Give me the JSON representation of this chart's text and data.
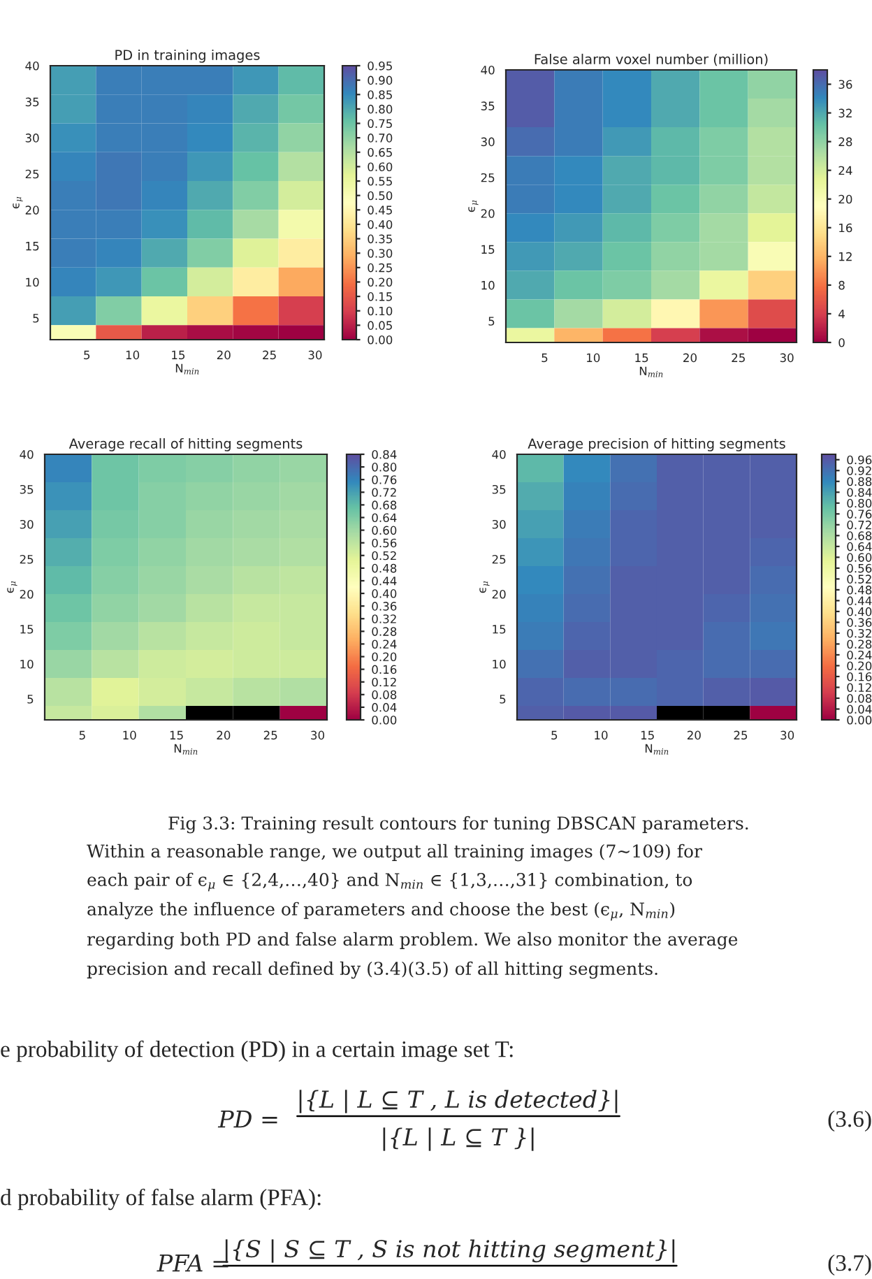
{
  "chart_data": [
    {
      "type": "heatmap",
      "title": "PD in training images",
      "xlabel": "N$_{min}$",
      "ylabel": "ϵ$_{μ}$",
      "x": [
        3.5,
        8.5,
        13.5,
        18.5,
        23.5,
        28.5
      ],
      "y": [
        38,
        34,
        30,
        26,
        22,
        18,
        14,
        10,
        6,
        2
      ],
      "xlim": [
        1,
        31
      ],
      "ylim": [
        2,
        40
      ],
      "xticks": [
        5,
        10,
        15,
        20,
        25,
        30
      ],
      "yticks": [
        5,
        10,
        15,
        20,
        25,
        30,
        35,
        40
      ],
      "cells": [
        [
          0.82,
          0.87,
          0.87,
          0.87,
          0.83,
          0.77
        ],
        [
          0.82,
          0.87,
          0.87,
          0.86,
          0.8,
          0.74
        ],
        [
          0.84,
          0.87,
          0.87,
          0.85,
          0.78,
          0.7
        ],
        [
          0.86,
          0.88,
          0.87,
          0.83,
          0.76,
          0.65
        ],
        [
          0.87,
          0.88,
          0.86,
          0.8,
          0.72,
          0.6
        ],
        [
          0.87,
          0.87,
          0.84,
          0.77,
          0.67,
          0.52
        ],
        [
          0.87,
          0.86,
          0.8,
          0.72,
          0.58,
          0.42
        ],
        [
          0.86,
          0.83,
          0.75,
          0.6,
          0.42,
          0.28
        ],
        [
          0.82,
          0.72,
          0.55,
          0.35,
          0.2,
          0.1
        ],
        [
          0.5,
          0.15,
          0.05,
          0.02,
          0.01,
          0.0
        ]
      ],
      "clim": [
        0,
        0.95
      ],
      "cticks": [
        {
          "value": 0,
          "label": "0.00"
        },
        {
          "value": 0.05,
          "label": "0.05"
        },
        {
          "value": 0.1,
          "label": "0.10"
        },
        {
          "value": 0.15,
          "label": "0.15"
        },
        {
          "value": 0.2,
          "label": "0.20"
        },
        {
          "value": 0.25,
          "label": "0.25"
        },
        {
          "value": 0.3,
          "label": "0.30"
        },
        {
          "value": 0.35,
          "label": "0.35"
        },
        {
          "value": 0.4,
          "label": "0.40"
        },
        {
          "value": 0.45,
          "label": "0.45"
        },
        {
          "value": 0.5,
          "label": "0.50"
        },
        {
          "value": 0.55,
          "label": "0.55"
        },
        {
          "value": 0.6,
          "label": "0.60"
        },
        {
          "value": 0.65,
          "label": "0.65"
        },
        {
          "value": 0.7,
          "label": "0.70"
        },
        {
          "value": 0.75,
          "label": "0.75"
        },
        {
          "value": 0.8,
          "label": "0.80"
        },
        {
          "value": 0.85,
          "label": "0.85"
        },
        {
          "value": 0.9,
          "label": "0.90"
        },
        {
          "value": 0.95,
          "label": "0.95"
        }
      ]
    },
    {
      "type": "heatmap",
      "title": "False alarm voxel number (million)",
      "xlabel": "N$_{min}$",
      "ylabel": "ϵ$_{μ}$",
      "x": [
        3.5,
        8.5,
        13.5,
        18.5,
        23.5,
        28.5
      ],
      "y": [
        38,
        34,
        30,
        26,
        22,
        18,
        14,
        10,
        6,
        2
      ],
      "xlim": [
        1,
        31
      ],
      "ylim": [
        2,
        40
      ],
      "xticks": [
        5,
        10,
        15,
        20,
        25,
        30
      ],
      "yticks": [
        5,
        10,
        15,
        20,
        25,
        30,
        35,
        40
      ],
      "cells": [
        [
          37,
          35,
          34,
          32,
          30,
          28
        ],
        [
          37,
          35,
          34,
          32,
          30,
          27
        ],
        [
          36,
          35,
          33,
          31,
          29,
          26
        ],
        [
          35,
          34,
          32,
          31,
          29,
          26
        ],
        [
          35,
          34,
          32,
          30,
          28,
          25
        ],
        [
          34,
          33,
          31,
          29,
          27,
          23
        ],
        [
          33,
          32,
          30,
          28,
          27,
          20
        ],
        [
          32,
          30,
          29,
          27,
          22,
          14
        ],
        [
          30,
          27,
          24,
          18,
          10,
          5
        ],
        [
          22,
          12,
          8,
          4,
          1,
          0
        ]
      ],
      "clim": [
        0,
        38
      ],
      "cticks": [
        0,
        4,
        8,
        12,
        16,
        20,
        24,
        28,
        32,
        36
      ]
    },
    {
      "type": "heatmap",
      "title": "Average recall of hitting segments",
      "xlabel": "N$_{min}$",
      "ylabel": "ϵ$_{μ}$",
      "x": [
        3.5,
        8.5,
        13.5,
        18.5,
        23.5,
        28.5
      ],
      "y": [
        38,
        34,
        30,
        26,
        22,
        18,
        14,
        10,
        6,
        2
      ],
      "xlim": [
        1,
        31
      ],
      "ylim": [
        2,
        40
      ],
      "xticks": [
        5,
        10,
        15,
        20,
        25,
        30
      ],
      "yticks": [
        5,
        10,
        15,
        20,
        25,
        30,
        35,
        40
      ],
      "cells": [
        [
          0.76,
          0.66,
          0.64,
          0.63,
          0.62,
          0.61
        ],
        [
          0.74,
          0.66,
          0.63,
          0.62,
          0.61,
          0.6
        ],
        [
          0.72,
          0.65,
          0.63,
          0.61,
          0.6,
          0.59
        ],
        [
          0.7,
          0.64,
          0.62,
          0.6,
          0.59,
          0.58
        ],
        [
          0.68,
          0.63,
          0.61,
          0.59,
          0.57,
          0.56
        ],
        [
          0.66,
          0.62,
          0.6,
          0.57,
          0.55,
          0.55
        ],
        [
          0.64,
          0.6,
          0.57,
          0.55,
          0.54,
          0.55
        ],
        [
          0.61,
          0.57,
          0.54,
          0.53,
          0.54,
          0.54
        ],
        [
          0.57,
          0.51,
          0.53,
          0.55,
          0.57,
          0.58
        ],
        [
          0.55,
          0.52,
          0.58,
          null,
          null,
          0.0
        ]
      ],
      "clim": [
        0,
        0.84
      ],
      "cticks": [
        {
          "value": 0,
          "label": "0.00"
        },
        {
          "value": 0.04,
          "label": "0.04"
        },
        {
          "value": 0.08,
          "label": "0.08"
        },
        {
          "value": 0.12,
          "label": "0.12"
        },
        {
          "value": 0.16,
          "label": "0.16"
        },
        {
          "value": 0.2,
          "label": "0.20"
        },
        {
          "value": 0.24,
          "label": "0.24"
        },
        {
          "value": 0.28,
          "label": "0.28"
        },
        {
          "value": 0.32,
          "label": "0.32"
        },
        {
          "value": 0.36,
          "label": "0.36"
        },
        {
          "value": 0.4,
          "label": "0.40"
        },
        {
          "value": 0.44,
          "label": "0.44"
        },
        {
          "value": 0.48,
          "label": "0.48"
        },
        {
          "value": 0.52,
          "label": "0.52"
        },
        {
          "value": 0.56,
          "label": "0.56"
        },
        {
          "value": 0.6,
          "label": "0.60"
        },
        {
          "value": 0.64,
          "label": "0.64"
        },
        {
          "value": 0.68,
          "label": "0.68"
        },
        {
          "value": 0.72,
          "label": "0.72"
        },
        {
          "value": 0.76,
          "label": "0.76"
        },
        {
          "value": 0.8,
          "label": "0.80"
        },
        {
          "value": 0.84,
          "label": "0.84"
        }
      ]
    },
    {
      "type": "heatmap",
      "title": "Average precision of hitting segments",
      "xlabel": "N$_{min}$",
      "ylabel": "ϵ$_{μ}$",
      "x": [
        3.5,
        8.5,
        13.5,
        18.5,
        23.5,
        28.5
      ],
      "y": [
        38,
        34,
        30,
        26,
        22,
        18,
        14,
        10,
        6,
        2
      ],
      "xlim": [
        1,
        31
      ],
      "ylim": [
        2,
        40
      ],
      "xticks": [
        5,
        10,
        15,
        20,
        25,
        30
      ],
      "yticks": [
        5,
        10,
        15,
        20,
        25,
        30,
        35,
        40
      ],
      "cells": [
        [
          0.8,
          0.88,
          0.92,
          0.95,
          0.95,
          0.95
        ],
        [
          0.82,
          0.89,
          0.93,
          0.95,
          0.95,
          0.95
        ],
        [
          0.84,
          0.9,
          0.94,
          0.95,
          0.95,
          0.95
        ],
        [
          0.86,
          0.91,
          0.94,
          0.95,
          0.95,
          0.94
        ],
        [
          0.88,
          0.92,
          0.95,
          0.95,
          0.95,
          0.93
        ],
        [
          0.89,
          0.93,
          0.95,
          0.95,
          0.94,
          0.92
        ],
        [
          0.9,
          0.94,
          0.95,
          0.95,
          0.93,
          0.91
        ],
        [
          0.92,
          0.95,
          0.95,
          0.94,
          0.93,
          0.93
        ],
        [
          0.94,
          0.93,
          0.93,
          0.94,
          0.95,
          0.96
        ],
        [
          0.95,
          0.96,
          0.96,
          null,
          null,
          0.0
        ]
      ],
      "clim": [
        0,
        0.98
      ],
      "cticks": [
        {
          "value": 0,
          "label": "0.00"
        },
        {
          "value": 0.04,
          "label": "0.04"
        },
        {
          "value": 0.08,
          "label": "0.08"
        },
        {
          "value": 0.12,
          "label": "0.12"
        },
        {
          "value": 0.16,
          "label": "0.16"
        },
        {
          "value": 0.2,
          "label": "0.20"
        },
        {
          "value": 0.24,
          "label": "0.24"
        },
        {
          "value": 0.28,
          "label": "0.28"
        },
        {
          "value": 0.32,
          "label": "0.32"
        },
        {
          "value": 0.36,
          "label": "0.36"
        },
        {
          "value": 0.4,
          "label": "0.40"
        },
        {
          "value": 0.44,
          "label": "0.44"
        },
        {
          "value": 0.48,
          "label": "0.48"
        },
        {
          "value": 0.52,
          "label": "0.52"
        },
        {
          "value": 0.56,
          "label": "0.56"
        },
        {
          "value": 0.6,
          "label": "0.60"
        },
        {
          "value": 0.64,
          "label": "0.64"
        },
        {
          "value": 0.68,
          "label": "0.68"
        },
        {
          "value": 0.72,
          "label": "0.72"
        },
        {
          "value": 0.76,
          "label": "0.76"
        },
        {
          "value": 0.8,
          "label": "0.80"
        },
        {
          "value": 0.84,
          "label": "0.84"
        },
        {
          "value": 0.88,
          "label": "0.88"
        },
        {
          "value": 0.92,
          "label": "0.92"
        },
        {
          "value": 0.96,
          "label": "0.96"
        }
      ]
    },
    {
      "type": "other",
      "annotations": [
        "Fig 3.3: Training result contours for tuning DBSCAN parameters.",
        "Within a reasonable range, we output all training images (7~109) for",
        "each pair of ϵ$_{μ}$ ∈ {2,4,…,40} and N$_{min}$ ∈ {1,3,…,31} combination, to",
        "analyze the influence of parameters and choose the best (ϵ$_{μ}$, N$_{min}$)",
        "regarding both PD and false alarm problem. We also monitor the average",
        "precision and recall defined by (3.4)(3.5) of all hitting segments.",
        "e probability of detection (PD) in a certain image set T:",
        "PD =",
        "|{L | L ⊆ T , L is detected}|",
        "|{L | L ⊆ T }|",
        "(3.6)",
        "d probability of false alarm (PFA):",
        "PFA =",
        "|{S | S ⊆ T , S is not hitting segment}|",
        "(3.7)"
      ]
    }
  ]
}
